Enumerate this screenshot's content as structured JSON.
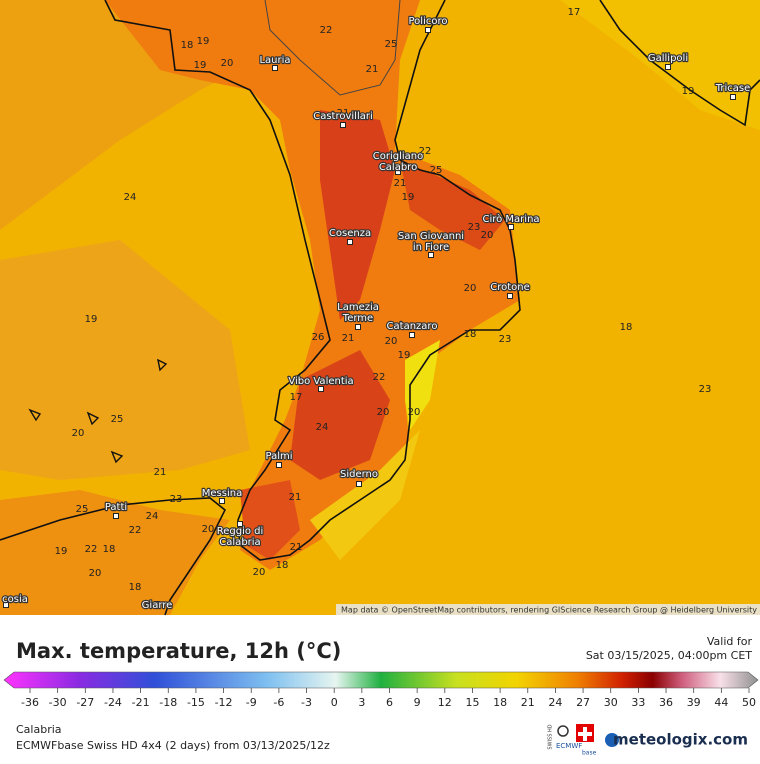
{
  "map": {
    "cities": [
      [
        "Policoro"
      ],
      [
        "Lauria"
      ],
      [
        "Gallipoli"
      ],
      [
        "Tricase"
      ],
      [
        "Castrovillari"
      ],
      [
        "Corigliano",
        "Calabro"
      ],
      [
        "Cirò Marina"
      ],
      [
        "Cosenza"
      ],
      [
        "San Giovanni",
        "in Fiore"
      ],
      [
        "Crotone"
      ],
      [
        "Lamezia",
        "Terme"
      ],
      [
        "Catanzaro"
      ],
      [
        "Vibo Valentia"
      ],
      [
        "Palmi"
      ],
      [
        "Siderno"
      ],
      [
        "Messina"
      ],
      [
        "Patti"
      ],
      [
        "Reggio di",
        "Calabria"
      ],
      [
        "Giarre"
      ],
      [
        "cosia"
      ]
    ],
    "temperature_labels": [
      19,
      18,
      22,
      25,
      21,
      19,
      20,
      17,
      19,
      21,
      22,
      25,
      21,
      19,
      24,
      23,
      20,
      20,
      19,
      26,
      21,
      20,
      19,
      18,
      18,
      23,
      23,
      22,
      17,
      20,
      20,
      25,
      20,
      24,
      21,
      23,
      25,
      24,
      22,
      21,
      20,
      19,
      22,
      18,
      21,
      20,
      20,
      18,
      18
    ],
    "attribution": "Map data © OpenStreetMap contributors, rendering GIScience Research Group @ Heidelberg University"
  },
  "legend": {
    "title": "Max. temperature, 12h (°C)",
    "valid_label": "Valid for",
    "valid_time": "Sat 03/15/2025, 04:00pm CET",
    "ticks": [
      -36,
      -30,
      -27,
      -24,
      -21,
      -18,
      -15,
      -12,
      -9,
      -6,
      -3,
      0,
      3,
      6,
      9,
      12,
      15,
      18,
      21,
      24,
      27,
      30,
      33,
      36,
      39,
      44,
      50
    ]
  },
  "footer": {
    "region": "Calabria",
    "model": "ECMWFbase Swiss HD 4x4 (2 days) from 03/13/2025/12z",
    "badge_swiss": "SWISS HD",
    "badge_ecmwf": "ECMWF",
    "badge_base": "base",
    "brand": "meteologix.com"
  }
}
